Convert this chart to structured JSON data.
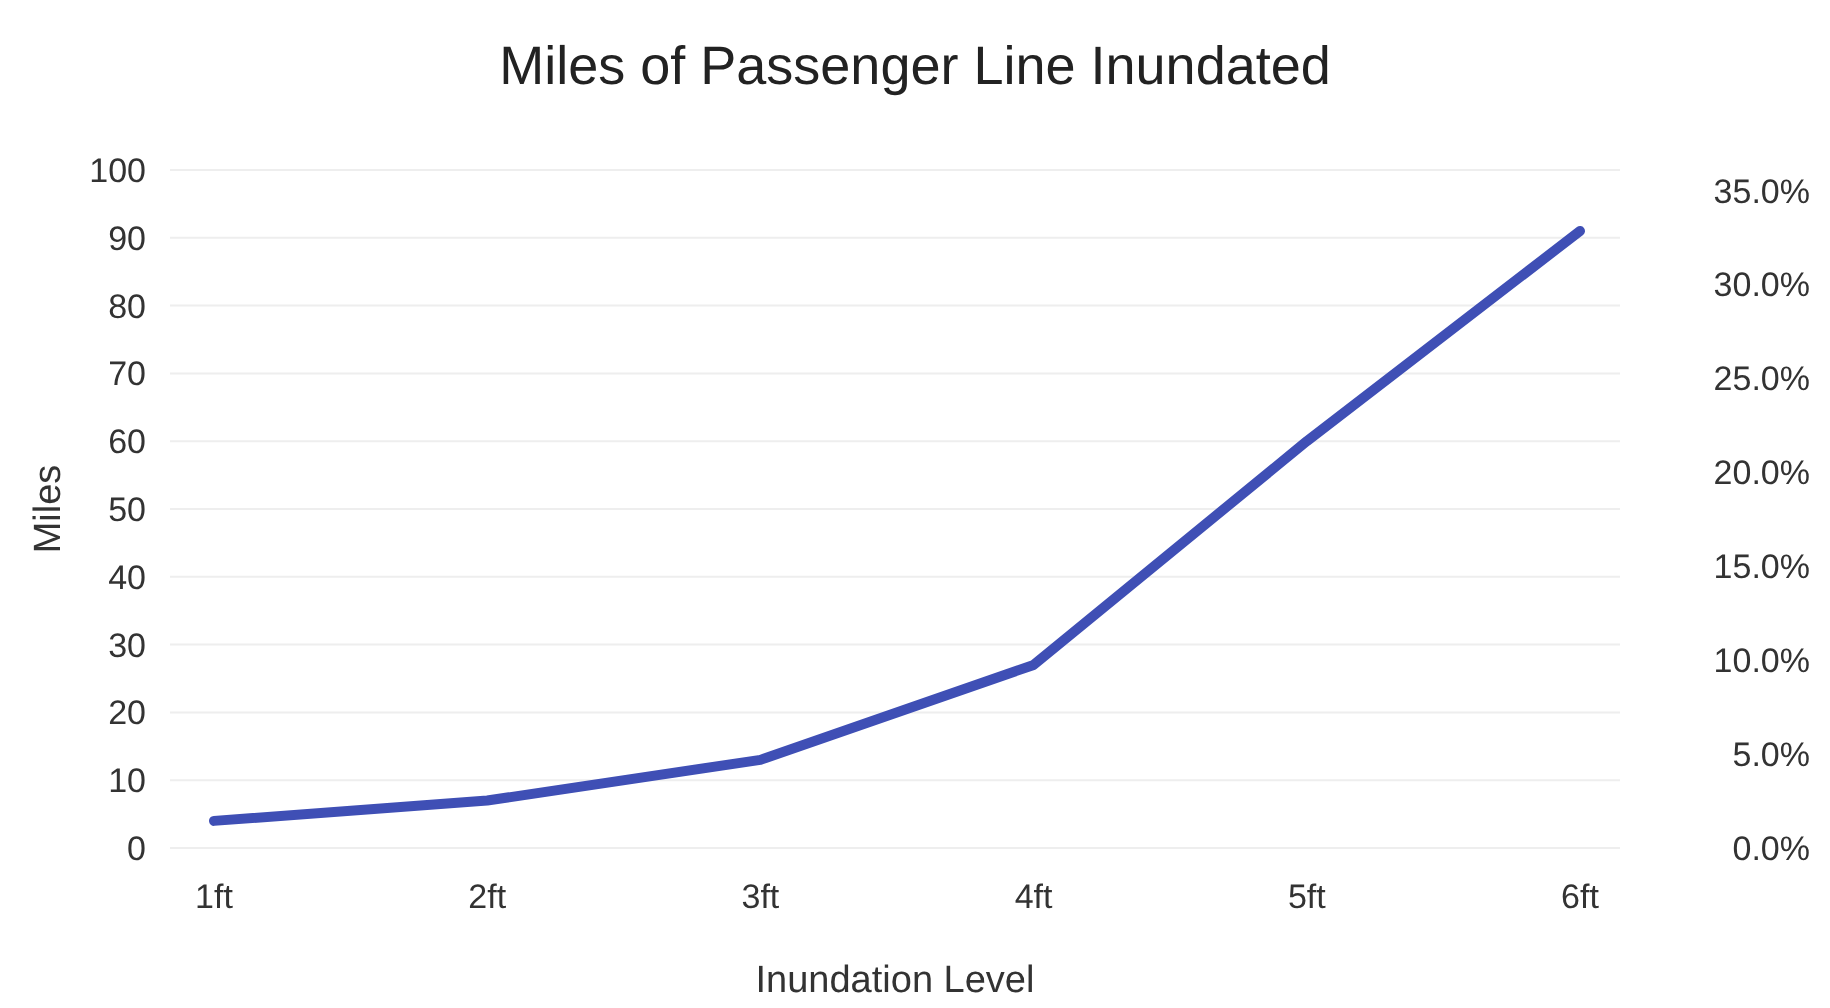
{
  "chart_data": {
    "type": "line",
    "title": "Miles of Passenger Line Inundated",
    "xlabel": "Inundation Level",
    "ylabel": "Miles",
    "categories": [
      "1ft",
      "2ft",
      "3ft",
      "4ft",
      "5ft",
      "6ft"
    ],
    "series": [
      {
        "color": "#3f4fb5",
        "values": [
          4,
          7,
          13,
          27,
          60,
          91
        ]
      }
    ],
    "ylim": [
      0,
      100
    ],
    "yticks": [
      0,
      10,
      20,
      30,
      40,
      50,
      60,
      70,
      80,
      90,
      100
    ],
    "y2lim": [
      0,
      36.1
    ],
    "y2ticks": [
      {
        "value": 0,
        "label": "0.0%"
      },
      {
        "value": 5,
        "label": "5.0%"
      },
      {
        "value": 10,
        "label": "10.0%"
      },
      {
        "value": 15,
        "label": "15.0%"
      },
      {
        "value": 20,
        "label": "20.0%"
      },
      {
        "value": 25,
        "label": "25.0%"
      },
      {
        "value": 30,
        "label": "30.0%"
      },
      {
        "value": 35,
        "label": "35.0%"
      }
    ],
    "grid": "y",
    "marker": "none",
    "line_style": "solid"
  }
}
